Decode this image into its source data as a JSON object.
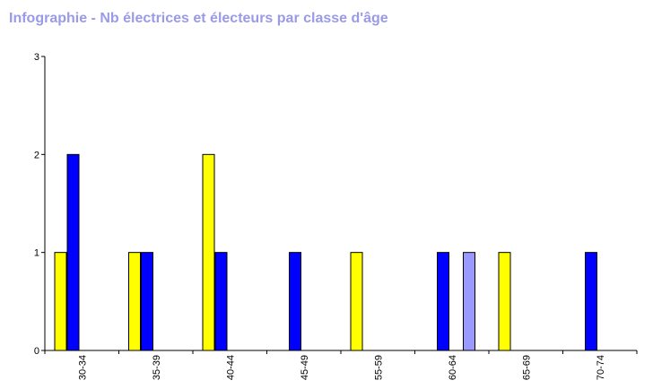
{
  "chart_data": {
    "type": "bar",
    "title": "Infographie - Nb électrices et électeurs par classe d'âge",
    "categories": [
      "30-34",
      "35-39",
      "40-44",
      "45-49",
      "55-59",
      "60-64",
      "65-69",
      "70-74"
    ],
    "series": [
      {
        "color": "#ffff00",
        "values": [
          1,
          1,
          2,
          0,
          1,
          0,
          1,
          0
        ]
      },
      {
        "color": "#0000ff",
        "values": [
          2,
          1,
          1,
          1,
          0,
          1,
          0,
          1
        ]
      },
      {
        "color": "#9999ff",
        "values": [
          0,
          0,
          0,
          0,
          0,
          1,
          0,
          0
        ]
      }
    ],
    "ylim": [
      0,
      3
    ],
    "yticks": [
      0,
      1,
      2,
      3
    ],
    "xlabel": "",
    "ylabel": "",
    "grid": false,
    "legend": "none"
  }
}
